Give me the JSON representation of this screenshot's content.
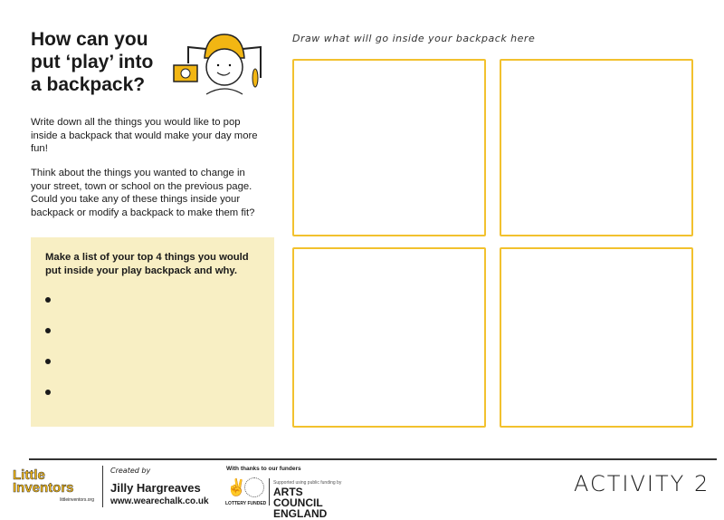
{
  "title": "How can you put ‘play’ into a backpack?",
  "intro": [
    "Write down all the things you would like to pop inside a backpack that would make your day more fun!",
    "Think about the things you wanted to change in your street, town or school on the previous page. Could you take any of these things inside your backpack or modify a backpack to make them fit?"
  ],
  "list_box": {
    "heading": "Make a list of your top 4 things you would put inside your play backpack and why.",
    "bullets": 4
  },
  "draw_label": "Draw what will go inside your backpack here",
  "footer": {
    "logo": "Little Inventors",
    "logo_url": "littleinventors.org",
    "created_by": "Created by",
    "creator": "Jilly Hargreaves",
    "creator_url": "www.wearechalk.co.uk",
    "thanks": "With thanks to our funders",
    "lottery": "LOTTERY FUNDED",
    "arts_support": "Supported using public funding by",
    "arts_council": "ARTS COUNCIL ENGLAND",
    "activity": "ACTIVITY 2"
  },
  "colors": {
    "accent": "#f2c12e",
    "box_bg": "#f8efc4"
  }
}
